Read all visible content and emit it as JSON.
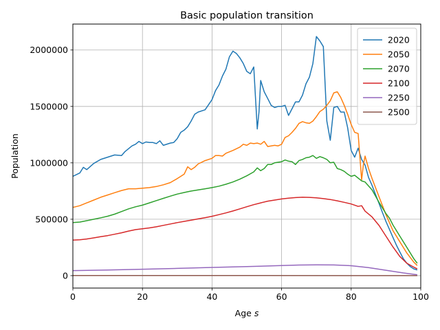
{
  "chart_data": {
    "type": "line",
    "title": "Basic population transition",
    "xlabel": "Age s",
    "xlabel_parts": {
      "text": "Age ",
      "var": "s"
    },
    "ylabel": "Population",
    "xlim": [
      0,
      100
    ],
    "ylim": [
      -110000,
      2230000
    ],
    "xticks": [
      0,
      20,
      40,
      60,
      80,
      100
    ],
    "yticks": [
      0,
      500000,
      1000000,
      1500000,
      2000000
    ],
    "grid": true,
    "legend_position": "top-right",
    "series": [
      {
        "name": "2020",
        "color": "#1f77b4",
        "x": [
          0,
          2,
          3,
          4,
          6,
          8,
          10,
          12,
          14,
          15,
          17,
          18,
          19,
          20,
          21,
          22,
          23,
          24,
          25,
          26,
          28,
          29,
          30,
          31,
          32,
          33,
          34,
          35,
          36,
          38,
          40,
          41,
          42,
          43,
          44,
          45,
          46,
          47,
          48,
          49,
          50,
          51,
          52,
          53,
          53.5,
          54,
          55,
          56,
          57,
          58,
          59,
          60,
          61,
          62,
          63,
          64,
          65,
          66,
          67,
          68,
          69,
          70,
          71,
          72,
          73,
          74,
          75,
          76,
          77,
          78,
          79,
          80,
          81,
          82,
          83,
          84,
          85,
          86,
          87,
          88,
          89,
          90,
          91,
          92,
          93,
          94,
          95,
          96,
          97,
          98,
          99
        ],
        "y": [
          880000,
          910000,
          960000,
          940000,
          995000,
          1030000,
          1050000,
          1070000,
          1065000,
          1100000,
          1150000,
          1165000,
          1190000,
          1170000,
          1185000,
          1180000,
          1180000,
          1170000,
          1195000,
          1155000,
          1175000,
          1180000,
          1215000,
          1270000,
          1290000,
          1320000,
          1370000,
          1430000,
          1450000,
          1470000,
          1560000,
          1640000,
          1690000,
          1770000,
          1830000,
          1940000,
          1990000,
          1970000,
          1930000,
          1880000,
          1810000,
          1790000,
          1850000,
          1300000,
          1450000,
          1730000,
          1630000,
          1570000,
          1510000,
          1490000,
          1500000,
          1500000,
          1510000,
          1420000,
          1480000,
          1540000,
          1540000,
          1600000,
          1700000,
          1760000,
          1880000,
          2120000,
          2080000,
          2030000,
          1370000,
          1200000,
          1490000,
          1500000,
          1450000,
          1450000,
          1310000,
          1110000,
          1050000,
          1130000,
          1030000,
          980000,
          870000,
          800000,
          720000,
          640000,
          560000,
          480000,
          410000,
          340000,
          270000,
          210000,
          150000,
          110000,
          80000,
          60000,
          50000
        ]
      },
      {
        "name": "2050",
        "color": "#ff7f0e",
        "x": [
          0,
          2,
          4,
          6,
          8,
          10,
          12,
          14,
          16,
          18,
          20,
          22,
          24,
          26,
          28,
          30,
          32,
          33,
          34,
          35,
          36,
          38,
          40,
          41,
          42,
          43,
          44,
          46,
          48,
          49,
          50,
          51,
          52,
          53,
          54,
          55,
          56,
          58,
          59,
          60,
          61,
          62,
          63,
          64,
          65,
          66,
          67,
          68,
          69,
          70,
          71,
          72,
          73,
          74,
          75,
          76,
          77,
          78,
          79,
          80,
          81,
          82,
          83,
          83.5,
          84,
          85,
          86,
          88,
          90,
          92,
          94,
          96,
          98,
          99
        ],
        "y": [
          605000,
          620000,
          645000,
          670000,
          695000,
          715000,
          735000,
          755000,
          770000,
          770000,
          775000,
          780000,
          790000,
          805000,
          825000,
          860000,
          900000,
          965000,
          940000,
          960000,
          990000,
          1020000,
          1040000,
          1065000,
          1065000,
          1060000,
          1085000,
          1110000,
          1140000,
          1165000,
          1155000,
          1175000,
          1170000,
          1175000,
          1165000,
          1190000,
          1145000,
          1155000,
          1150000,
          1165000,
          1225000,
          1240000,
          1270000,
          1305000,
          1350000,
          1365000,
          1355000,
          1350000,
          1370000,
          1410000,
          1455000,
          1475000,
          1510000,
          1550000,
          1620000,
          1630000,
          1580000,
          1510000,
          1430000,
          1340000,
          1270000,
          1260000,
          850000,
          980000,
          1060000,
          950000,
          860000,
          700000,
          540000,
          400000,
          300000,
          200000,
          120000,
          90000
        ]
      },
      {
        "name": "2070",
        "color": "#2ca02c",
        "x": [
          0,
          2,
          4,
          6,
          8,
          10,
          12,
          14,
          16,
          18,
          20,
          22,
          24,
          26,
          28,
          30,
          32,
          34,
          36,
          38,
          40,
          42,
          44,
          46,
          48,
          50,
          52,
          53,
          54,
          55,
          56,
          57,
          58,
          59,
          60,
          61,
          62,
          63,
          64,
          65,
          66,
          67,
          68,
          69,
          70,
          71,
          72,
          73,
          74,
          75,
          76,
          77,
          78,
          79,
          80,
          81,
          82,
          83,
          84,
          86,
          88,
          90,
          91,
          92,
          94,
          96,
          98,
          99
        ],
        "y": [
          470000,
          475000,
          487000,
          500000,
          513000,
          527000,
          545000,
          568000,
          592000,
          610000,
          625000,
          645000,
          665000,
          685000,
          705000,
          723000,
          737000,
          750000,
          760000,
          770000,
          780000,
          793000,
          810000,
          830000,
          855000,
          885000,
          920000,
          955000,
          930000,
          950000,
          985000,
          985000,
          1000000,
          1005000,
          1010000,
          1025000,
          1015000,
          1010000,
          985000,
          1020000,
          1030000,
          1045000,
          1050000,
          1065000,
          1040000,
          1055000,
          1045000,
          1030000,
          1000000,
          1005000,
          950000,
          940000,
          925000,
          900000,
          880000,
          890000,
          865000,
          840000,
          830000,
          760000,
          650000,
          550000,
          510000,
          450000,
          350000,
          250000,
          150000,
          110000
        ]
      },
      {
        "name": "2100",
        "color": "#d62728",
        "x": [
          0,
          2,
          4,
          6,
          8,
          10,
          12,
          14,
          16,
          18,
          20,
          22,
          24,
          26,
          28,
          30,
          32,
          34,
          36,
          38,
          40,
          42,
          44,
          46,
          48,
          50,
          52,
          54,
          56,
          58,
          60,
          62,
          64,
          66,
          68,
          70,
          72,
          74,
          76,
          78,
          80,
          81,
          82,
          83,
          84,
          86,
          88,
          90,
          92,
          94,
          96,
          98,
          99
        ],
        "y": [
          315000,
          318000,
          325000,
          335000,
          345000,
          355000,
          367000,
          380000,
          395000,
          408000,
          415000,
          423000,
          433000,
          446000,
          458000,
          470000,
          481000,
          492000,
          503000,
          514000,
          526000,
          541000,
          556000,
          573000,
          592000,
          611000,
          629000,
          645000,
          660000,
          670000,
          680000,
          687000,
          692000,
          695000,
          694000,
          690000,
          683000,
          675000,
          663000,
          650000,
          635000,
          625000,
          614000,
          620000,
          572000,
          520000,
          445000,
          350000,
          255000,
          170000,
          110000,
          75000,
          60000
        ]
      },
      {
        "name": "2250",
        "color": "#9467bd",
        "x": [
          0,
          10,
          20,
          30,
          40,
          50,
          60,
          65,
          70,
          75,
          80,
          85,
          90,
          95,
          99
        ],
        "y": [
          45000,
          50000,
          57000,
          64000,
          73000,
          81000,
          89000,
          94000,
          96000,
          95000,
          88000,
          71000,
          48000,
          24000,
          8000
        ]
      },
      {
        "name": "2500",
        "color": "#8c564b",
        "x": [
          0,
          50,
          99
        ],
        "y": [
          1000,
          1000,
          500
        ]
      }
    ]
  }
}
